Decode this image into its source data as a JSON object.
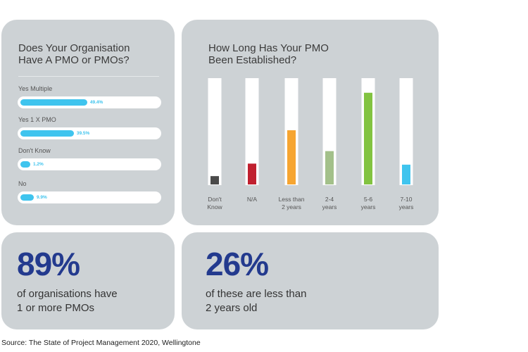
{
  "panels": {
    "left_title": "Does Your Organisation\nHave A PMO or PMOs?",
    "right_title": "How Long Has Your PMO\nBeen Established?",
    "stat1": {
      "value": "89%",
      "text": "of organisations have\n1 or more PMOs"
    },
    "stat2": {
      "value": "26%",
      "text": "of these are less than\n2 years old"
    }
  },
  "source": "Source: The State of Project Management 2020, Wellingtone",
  "chart_data": [
    {
      "type": "bar",
      "orientation": "horizontal",
      "title": "Does Your Organisation Have A PMO or PMOs?",
      "categories": [
        "Yes Multiple",
        "Yes 1 X PMO",
        "Don't Know",
        "No"
      ],
      "values": [
        49.4,
        39.5,
        1.2,
        9.9
      ],
      "labels": [
        "49.4%",
        "39.5%",
        "1.2%",
        "9.9%"
      ],
      "xlim": [
        0,
        100
      ],
      "color": "#3fc4ee"
    },
    {
      "type": "bar",
      "title": "How Long Has Your PMO Been Established?",
      "categories": [
        "Don't\nKnow",
        "N/A",
        "Less than\n2 years",
        "2-4\nyears",
        "5-6\nyears",
        "7-10\nyears"
      ],
      "values": [
        8,
        20,
        52,
        32,
        88,
        19
      ],
      "ylim": [
        0,
        100
      ],
      "colors": [
        "#4a4a4a",
        "#c0202f",
        "#f6a531",
        "#a3c08a",
        "#82c341",
        "#3fc4ee"
      ]
    }
  ]
}
